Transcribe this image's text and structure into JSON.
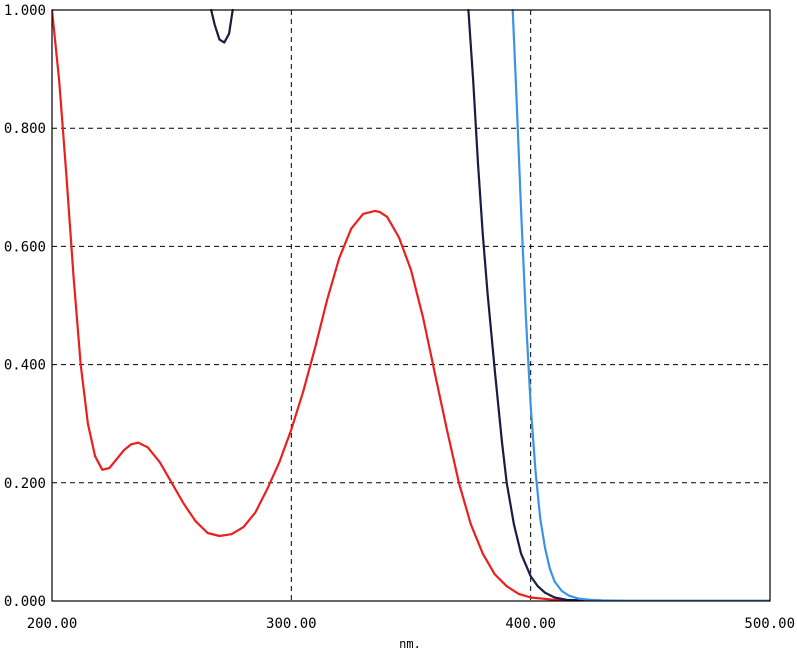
{
  "chart_data": {
    "type": "line",
    "xlabel": "nm.",
    "xlim": [
      200,
      500
    ],
    "ylim": [
      0,
      1
    ],
    "x_ticks": [
      {
        "value": 200,
        "label": "200.00"
      },
      {
        "value": 300,
        "label": "300.00"
      },
      {
        "value": 400,
        "label": "400.00"
      },
      {
        "value": 500,
        "label": "500.00"
      }
    ],
    "y_ticks": [
      {
        "value": 0.0,
        "label": "0.000"
      },
      {
        "value": 0.2,
        "label": "0.200"
      },
      {
        "value": 0.4,
        "label": "0.400"
      },
      {
        "value": 0.6,
        "label": "0.600"
      },
      {
        "value": 0.8,
        "label": "0.800"
      },
      {
        "value": 1.0,
        "label": "1.000"
      }
    ],
    "grid": true,
    "series": [
      {
        "color": "#e8211d",
        "x": [
          200,
          203,
          206,
          209,
          212,
          215,
          218,
          221,
          224,
          227,
          230,
          233,
          236,
          240,
          245,
          250,
          255,
          260,
          265,
          270,
          275,
          280,
          285,
          290,
          295,
          300,
          305,
          310,
          315,
          320,
          325,
          330,
          335,
          337,
          340,
          345,
          350,
          355,
          360,
          365,
          370,
          375,
          380,
          385,
          390,
          395,
          400,
          410,
          420,
          440,
          470,
          500
        ],
        "y": [
          1.0,
          0.88,
          0.72,
          0.55,
          0.4,
          0.3,
          0.245,
          0.222,
          0.225,
          0.24,
          0.255,
          0.265,
          0.268,
          0.26,
          0.235,
          0.2,
          0.165,
          0.135,
          0.115,
          0.11,
          0.113,
          0.125,
          0.15,
          0.19,
          0.235,
          0.29,
          0.355,
          0.43,
          0.51,
          0.58,
          0.63,
          0.655,
          0.66,
          0.658,
          0.65,
          0.615,
          0.56,
          0.48,
          0.385,
          0.29,
          0.2,
          0.13,
          0.08,
          0.045,
          0.025,
          0.012,
          0.006,
          0.002,
          0.001,
          0.0,
          0.0,
          0.0
        ]
      },
      {
        "color": "#171c45",
        "x": [
          266.5,
          268,
          270,
          272,
          274,
          275.5,
          374,
          376,
          378,
          380,
          382,
          385,
          388,
          390,
          393,
          396,
          400,
          403,
          406,
          410,
          415,
          420,
          430,
          440,
          460,
          500
        ],
        "y": [
          1.0,
          0.975,
          0.95,
          0.945,
          0.96,
          1.0,
          1.0,
          0.88,
          0.74,
          0.62,
          0.52,
          0.39,
          0.27,
          0.2,
          0.13,
          0.08,
          0.042,
          0.025,
          0.014,
          0.006,
          0.002,
          0.001,
          0.0,
          0.0,
          0.0,
          0.0
        ],
        "breaks": [
          6
        ]
      },
      {
        "color": "#3a93e6",
        "x": [
          392.5,
          394,
          396,
          398,
          400,
          402,
          404,
          406,
          408,
          410,
          413,
          416,
          420,
          425,
          430,
          440,
          460,
          500
        ],
        "y": [
          1.0,
          0.86,
          0.66,
          0.48,
          0.33,
          0.22,
          0.14,
          0.09,
          0.055,
          0.033,
          0.017,
          0.009,
          0.004,
          0.002,
          0.001,
          0.0,
          0.0,
          0.0
        ]
      }
    ]
  }
}
